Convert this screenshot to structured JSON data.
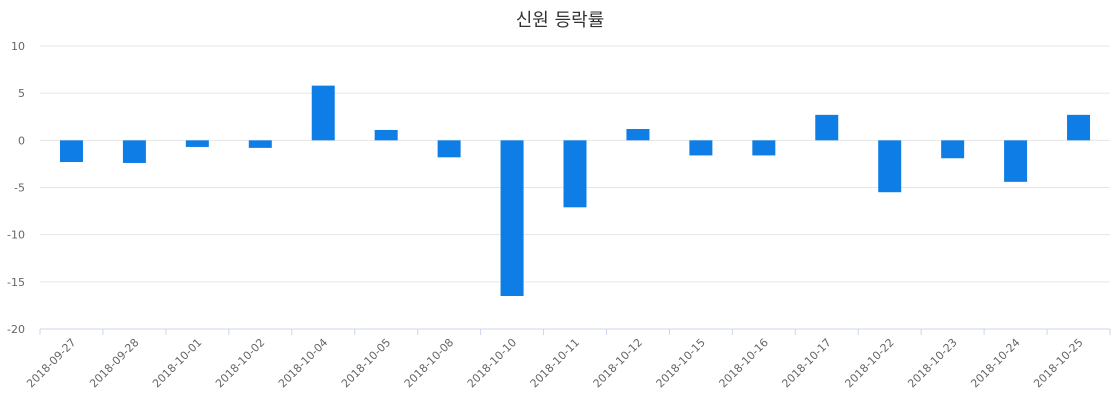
{
  "chart_data": {
    "type": "bar",
    "title": "신원 등락률",
    "xlabel": "",
    "ylabel": "",
    "ylim": [
      -20,
      10
    ],
    "yticks": [
      10,
      5,
      0,
      -5,
      -10,
      -15,
      -20
    ],
    "grid": true,
    "bar_color": "#0f7de6",
    "categories": [
      "2018-09-27",
      "2018-09-28",
      "2018-10-01",
      "2018-10-02",
      "2018-10-04",
      "2018-10-05",
      "2018-10-08",
      "2018-10-10",
      "2018-10-11",
      "2018-10-12",
      "2018-10-15",
      "2018-10-16",
      "2018-10-17",
      "2018-10-22",
      "2018-10-23",
      "2018-10-24",
      "2018-10-25"
    ],
    "values": [
      -2.3,
      -2.4,
      -0.7,
      -0.8,
      5.8,
      1.1,
      -1.8,
      -16.5,
      -7.1,
      1.2,
      -1.6,
      -1.6,
      2.7,
      -5.5,
      -1.9,
      -4.4,
      2.7
    ]
  }
}
